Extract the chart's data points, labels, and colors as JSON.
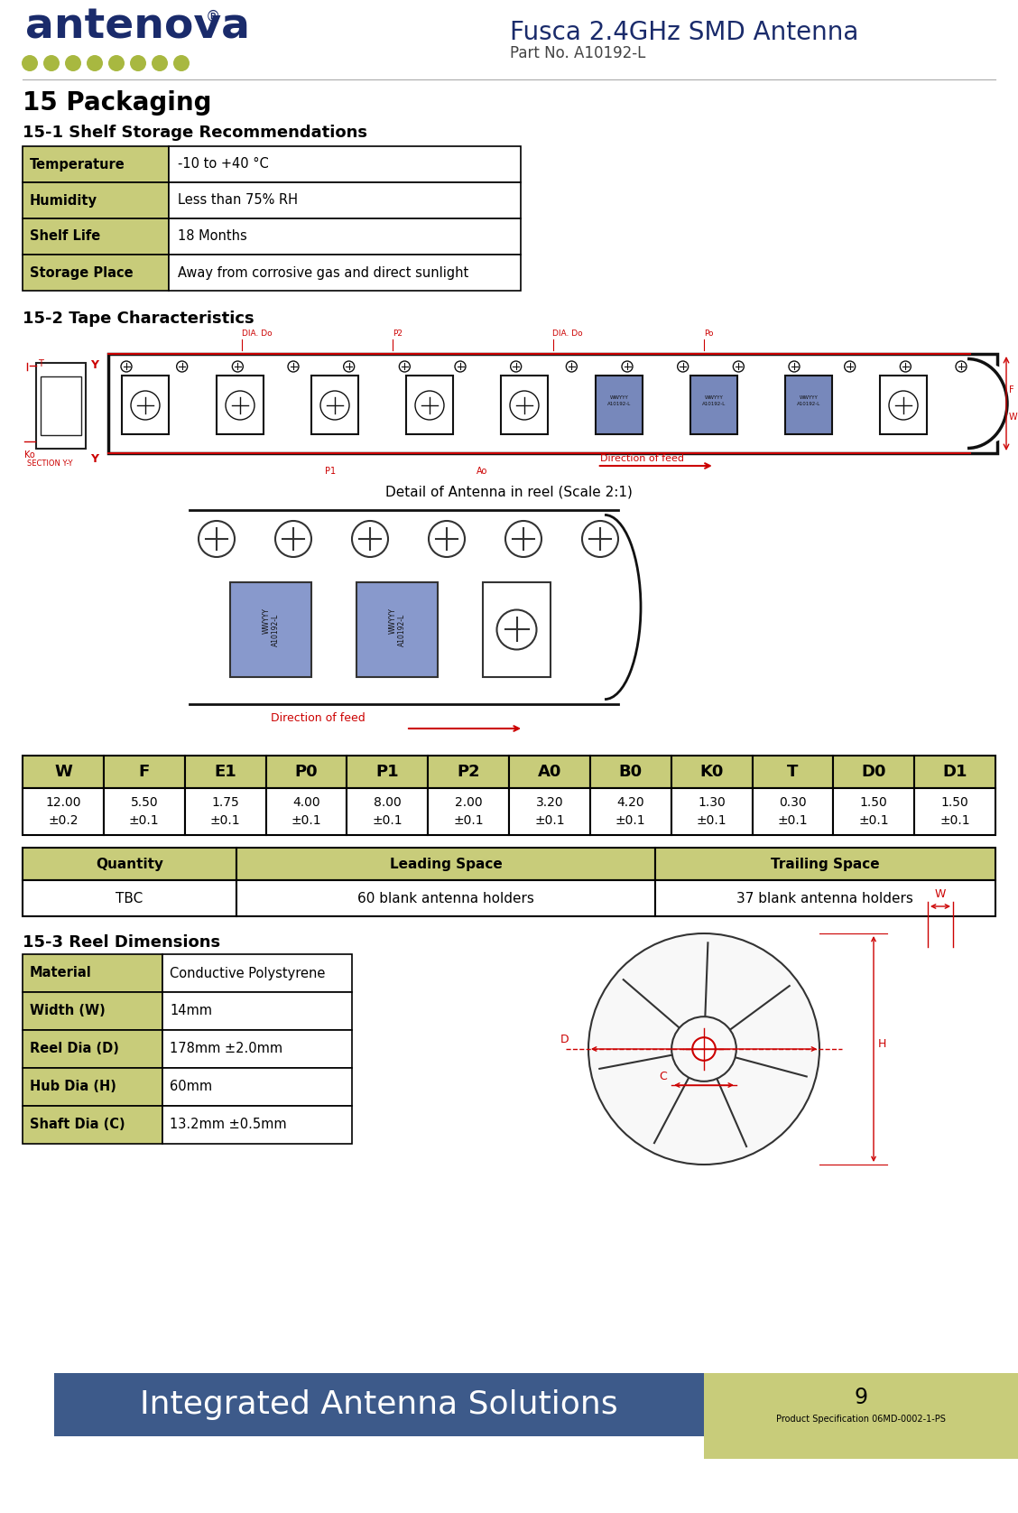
{
  "title_main": "15 Packaging",
  "section1_title": "15-1 Shelf Storage Recommendations",
  "section2_title": "15-2 Tape Characteristics",
  "section3_title": "15-3 Reel Dimensions",
  "storage_table": {
    "rows": [
      [
        "Temperature",
        "-10 to +40 °C"
      ],
      [
        "Humidity",
        "Less than 75% RH"
      ],
      [
        "Shelf Life",
        "18 Months"
      ],
      [
        "Storage Place",
        "Away from corrosive gas and direct sunlight"
      ]
    ],
    "col1_bg": "#c8cc7a",
    "col2_bg": "#ffffff",
    "border_color": "#000000"
  },
  "tape_table": {
    "headers": [
      "W",
      "F",
      "E1",
      "P0",
      "P1",
      "P2",
      "A0",
      "B0",
      "K0",
      "T",
      "D0",
      "D1"
    ],
    "values": [
      "12.00\n±0.2",
      "5.50\n±0.1",
      "1.75\n±0.1",
      "4.00\n±0.1",
      "8.00\n±0.1",
      "2.00\n±0.1",
      "3.20\n±0.1",
      "4.20\n±0.1",
      "1.30\n±0.1",
      "0.30\n±0.1",
      "1.50\n±0.1",
      "1.50\n±0.1"
    ],
    "header_bg": "#c8cc7a",
    "row_bg": "#ffffff",
    "border_color": "#000000"
  },
  "quantity_table": {
    "headers": [
      "Quantity",
      "Leading Space",
      "Trailing Space"
    ],
    "values": [
      "TBC",
      "60 blank antenna holders",
      "37 blank antenna holders"
    ],
    "header_bg": "#c8cc7a",
    "border_color": "#000000"
  },
  "reel_table": {
    "rows": [
      [
        "Material",
        "Conductive Polystyrene"
      ],
      [
        "Width (W)",
        "14mm"
      ],
      [
        "Reel Dia (D)",
        "178mm ±2.0mm"
      ],
      [
        "Hub Dia (H)",
        "60mm"
      ],
      [
        "Shaft Dia (C)",
        "13.2mm ±0.5mm"
      ]
    ],
    "col1_bg": "#c8cc7a",
    "border_color": "#000000"
  },
  "logo_text": "antenova",
  "logo_color": "#1a2b6b",
  "dots_color": "#a8b840",
  "product_title": "Fusca 2.4GHz SMD Antenna",
  "product_subtitle": "Part No. A10192-L",
  "footer_text": "Integrated Antenna Solutions",
  "footer_bg": "#3d5a8a",
  "footer_right_bg": "#c8cc7a",
  "page_num": "9",
  "doc_ref": "Product Specification 06MD-0002-1-PS",
  "detail_caption": "Detail of Antenna in reel (Scale 2:1)",
  "direction_label": "Direction of feed",
  "red_color": "#cc0000",
  "bg_color": "#ffffff"
}
